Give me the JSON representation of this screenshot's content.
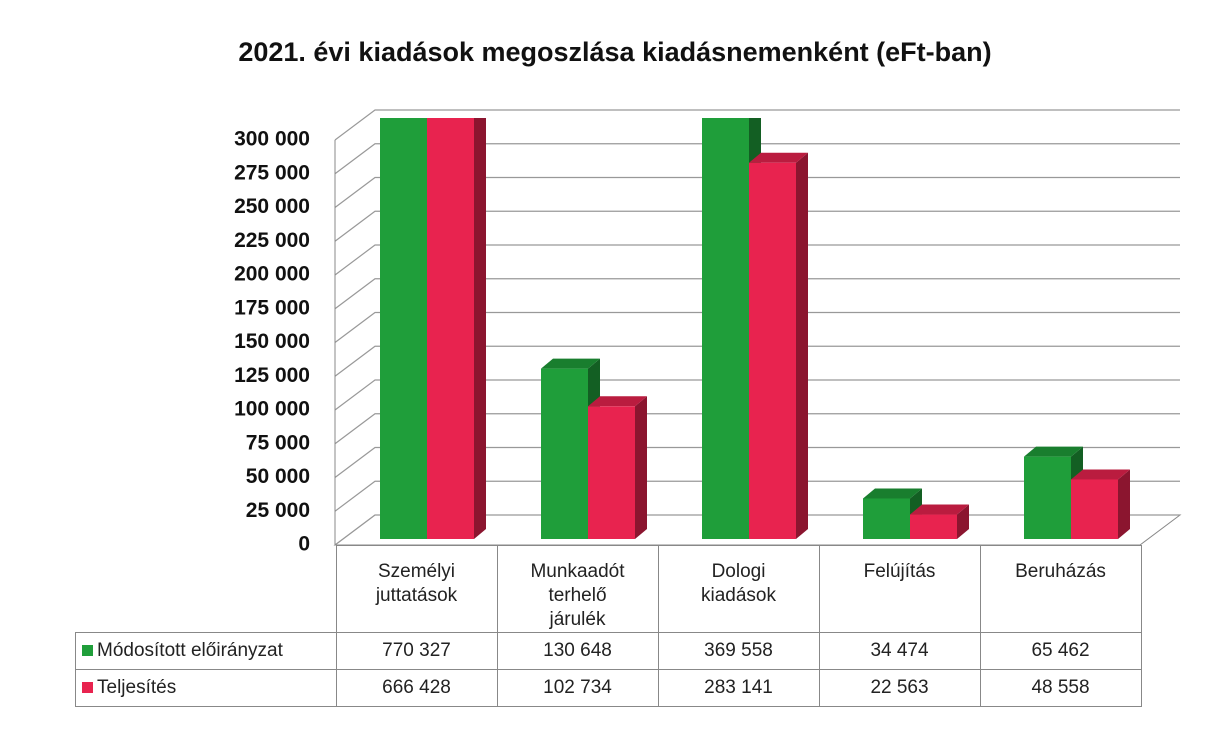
{
  "chart_data": {
    "type": "bar3d",
    "title": "2021. évi kiadások megoszlása kiadásnemenként (eFt-ban)",
    "categories": [
      "Személyi juttatások",
      "Munkaadót terhelő járulék",
      "Dologi kiadások",
      "Felújítás",
      "Beruházás"
    ],
    "series": [
      {
        "name": "Módosított előirányzat",
        "color": "#1f9e3a",
        "values": [
          770327,
          130648,
          369558,
          34474,
          65462
        ],
        "value_labels": [
          "770 327",
          "130 648",
          "369 558",
          "34 474",
          "65 462"
        ]
      },
      {
        "name": "Teljesítés",
        "color": "#e8234f",
        "values": [
          666428,
          102734,
          283141,
          22563,
          48558
        ],
        "value_labels": [
          "666 428",
          "102 734",
          "283 141",
          "22 563",
          "48 558"
        ]
      }
    ],
    "ylim": [
      0,
      300000
    ],
    "yticks": [
      0,
      {
        "value": 25000,
        "label": "25 000"
      },
      {
        "value": 50000,
        "label": "50 000"
      },
      {
        "value": 75000,
        "label": "75 000"
      },
      {
        "value": 100000,
        "label": "100 000"
      },
      {
        "value": 125000,
        "label": "125 000"
      },
      {
        "value": 150000,
        "label": "150 000"
      },
      {
        "value": 175000,
        "label": "175 000"
      },
      {
        "value": 200000,
        "label": "200 000"
      },
      {
        "value": 225000,
        "label": "225 000"
      },
      {
        "value": 250000,
        "label": "250 000"
      },
      {
        "value": 275000,
        "label": "275 000"
      },
      {
        "value": 300000,
        "label": "300 000"
      }
    ],
    "grid": true
  }
}
